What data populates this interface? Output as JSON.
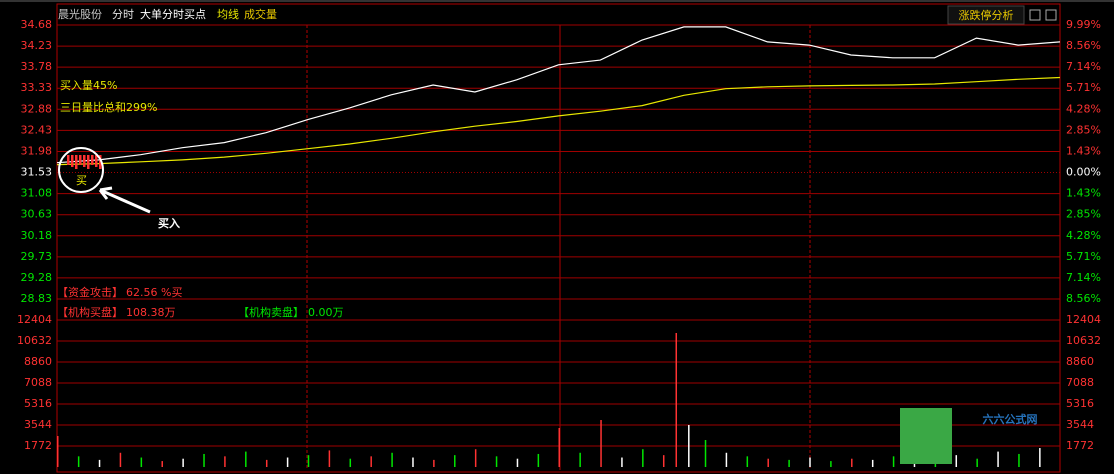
{
  "header": {
    "stock": "晨光股份",
    "tabs": [
      "分时",
      "大单分时买点",
      "均线",
      "成交量"
    ],
    "button": "涨跌停分析",
    "logo": "六六公式网"
  },
  "chart_data": [
    {
      "type": "line",
      "x": [
        0,
        10,
        20,
        30,
        40,
        50,
        60,
        70,
        80,
        90,
        100,
        110,
        120,
        130,
        140,
        150,
        160,
        170,
        180,
        190,
        200,
        210,
        220,
        230,
        240
      ],
      "xlim": [
        0,
        240
      ],
      "series": [
        {
          "name": "价格",
          "color": "#ffffff",
          "values": [
            31.74,
            31.8,
            31.91,
            32.06,
            32.17,
            32.38,
            32.66,
            32.91,
            33.19,
            33.4,
            33.25,
            33.51,
            33.83,
            33.93,
            34.36,
            34.64,
            34.64,
            34.32,
            34.25,
            34.04,
            33.98,
            33.98,
            34.4,
            34.25,
            34.32
          ]
        },
        {
          "name": "均线",
          "color": "#e8e800",
          "values": [
            31.7,
            31.72,
            31.76,
            31.8,
            31.86,
            31.94,
            32.04,
            32.14,
            32.26,
            32.4,
            32.52,
            32.62,
            32.74,
            32.84,
            32.96,
            33.18,
            33.32,
            33.36,
            33.38,
            33.39,
            33.4,
            33.42,
            33.47,
            33.52,
            33.56
          ]
        }
      ],
      "ylim": [
        28.83,
        34.68
      ],
      "yticks": [
        34.68,
        34.23,
        33.78,
        33.33,
        32.88,
        32.43,
        31.98,
        31.53,
        31.08,
        30.63,
        30.18,
        29.73,
        29.28,
        28.83
      ],
      "y2lim": [
        -8.56,
        9.99
      ],
      "y2ticks": [
        {
          "value": 9.99,
          "label": "9.99%"
        },
        {
          "value": 8.56,
          "label": "8.56%"
        },
        {
          "value": 7.14,
          "label": "7.14%"
        },
        {
          "value": 5.71,
          "label": "5.71%"
        },
        {
          "value": 4.28,
          "label": "4.28%"
        },
        {
          "value": 2.85,
          "label": "2.85%"
        },
        {
          "value": 1.43,
          "label": "1.43%"
        },
        {
          "value": 0,
          "label": "0.00%"
        },
        {
          "value": -1.43,
          "label": "1.43%"
        },
        {
          "value": -2.85,
          "label": "2.85%"
        },
        {
          "value": -4.28,
          "label": "4.28%"
        },
        {
          "value": -5.71,
          "label": "5.71%"
        },
        {
          "value": -7.14,
          "label": "7.14%"
        },
        {
          "value": -8.56,
          "label": "8.56%"
        }
      ],
      "grid": true,
      "annotations": [
        "买入量45%",
        "三日量比总和299%",
        "【资金攻击】",
        "62.56 %买",
        "【机构买盘】",
        "108.38万",
        "【机构卖盘】",
        "0.00万",
        "买入",
        "买"
      ]
    },
    {
      "type": "bar",
      "x": [
        0,
        5,
        10,
        15,
        20,
        25,
        30,
        35,
        40,
        45,
        50,
        55,
        60,
        65,
        70,
        75,
        80,
        85,
        90,
        95,
        100,
        105,
        110,
        115,
        120,
        125,
        130,
        135,
        140,
        145,
        148,
        151,
        155,
        160,
        165,
        170,
        175,
        180,
        185,
        190,
        195,
        200,
        205,
        210,
        215,
        220,
        225,
        230,
        235
      ],
      "xlim": [
        0,
        240
      ],
      "values": [
        2616,
        900,
        600,
        1200,
        800,
        500,
        700,
        1100,
        900,
        1300,
        600,
        800,
        1000,
        1400,
        700,
        900,
        1200,
        800,
        600,
        1000,
        1500,
        900,
        700,
        1100,
        3291,
        1200,
        3966,
        800,
        1500,
        1000,
        11307,
        3544,
        2278,
        1200,
        900,
        700,
        600,
        800,
        500,
        700,
        600,
        900,
        500,
        800,
        1000,
        700,
        1300,
        1100,
        1600
      ],
      "colors": [
        "#ff3232",
        "#00e600",
        "#ffffff",
        "#ff3232",
        "#00e600",
        "#ff3232",
        "#ffffff",
        "#00e600",
        "#ff3232",
        "#00e600",
        "#ff3232",
        "#ffffff",
        "#00e600",
        "#ff3232",
        "#00e600",
        "#ff3232",
        "#00e600",
        "#ffffff",
        "#ff3232",
        "#00e600",
        "#ff3232",
        "#00e600",
        "#ffffff",
        "#00e600",
        "#ff3232",
        "#00e600",
        "#ff3232",
        "#ffffff",
        "#00e600",
        "#ff3232",
        "#ff3232",
        "#ffffff",
        "#00e600",
        "#ffffff",
        "#00e600",
        "#ff3232",
        "#00e600",
        "#ffffff",
        "#00e600",
        "#ff3232",
        "#ffffff",
        "#00e600",
        "#ffffff",
        "#00e600",
        "#ffffff",
        "#00e600",
        "#ffffff",
        "#00e600",
        "#ffffff"
      ],
      "ylim": [
        0,
        12404
      ],
      "yticks": [
        12404,
        10632,
        8860,
        7088,
        5316,
        3544,
        1772
      ],
      "grid": true
    }
  ]
}
